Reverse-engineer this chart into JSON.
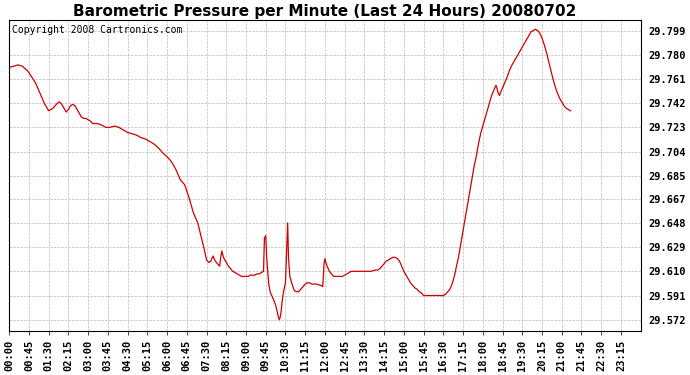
{
  "title": "Barometric Pressure per Minute (Last 24 Hours) 20080702",
  "copyright": "Copyright 2008 Cartronics.com",
  "line_color": "#cc0000",
  "bg_color": "#ffffff",
  "grid_color": "#b0b0b0",
  "yticks": [
    29.572,
    29.591,
    29.61,
    29.629,
    29.648,
    29.667,
    29.685,
    29.704,
    29.723,
    29.742,
    29.761,
    29.78,
    29.799
  ],
  "ylim": [
    29.5635,
    29.807
  ],
  "xtick_labels": [
    "00:00",
    "00:45",
    "01:30",
    "02:15",
    "03:00",
    "03:45",
    "04:30",
    "05:15",
    "06:00",
    "06:45",
    "07:30",
    "08:15",
    "09:00",
    "09:45",
    "10:30",
    "11:15",
    "12:00",
    "12:45",
    "13:30",
    "14:15",
    "15:00",
    "15:45",
    "16:30",
    "17:15",
    "18:00",
    "18:45",
    "19:30",
    "20:15",
    "21:00",
    "21:45",
    "22:30",
    "23:15"
  ],
  "pressure_data": [
    [
      0,
      29.77
    ],
    [
      10,
      29.771
    ],
    [
      20,
      29.772
    ],
    [
      30,
      29.771
    ],
    [
      40,
      29.768
    ],
    [
      45,
      29.766
    ],
    [
      60,
      29.758
    ],
    [
      70,
      29.75
    ],
    [
      80,
      29.742
    ],
    [
      90,
      29.736
    ],
    [
      100,
      29.738
    ],
    [
      110,
      29.742
    ],
    [
      115,
      29.743
    ],
    [
      120,
      29.741
    ],
    [
      125,
      29.738
    ],
    [
      130,
      29.735
    ],
    [
      135,
      29.737
    ],
    [
      140,
      29.74
    ],
    [
      145,
      29.741
    ],
    [
      150,
      29.74
    ],
    [
      155,
      29.737
    ],
    [
      160,
      29.734
    ],
    [
      165,
      29.731
    ],
    [
      170,
      29.73
    ],
    [
      175,
      29.73
    ],
    [
      180,
      29.729
    ],
    [
      185,
      29.728
    ],
    [
      190,
      29.726
    ],
    [
      200,
      29.726
    ],
    [
      210,
      29.725
    ],
    [
      215,
      29.724
    ],
    [
      220,
      29.723
    ],
    [
      225,
      29.723
    ],
    [
      230,
      29.723
    ],
    [
      240,
      29.724
    ],
    [
      250,
      29.723
    ],
    [
      255,
      29.722
    ],
    [
      260,
      29.721
    ],
    [
      265,
      29.72
    ],
    [
      270,
      29.719
    ],
    [
      280,
      29.718
    ],
    [
      290,
      29.717
    ],
    [
      300,
      29.715
    ],
    [
      310,
      29.714
    ],
    [
      315,
      29.713
    ],
    [
      320,
      29.712
    ],
    [
      330,
      29.71
    ],
    [
      340,
      29.707
    ],
    [
      345,
      29.705
    ],
    [
      350,
      29.703
    ],
    [
      360,
      29.7
    ],
    [
      370,
      29.696
    ],
    [
      375,
      29.693
    ],
    [
      380,
      29.69
    ],
    [
      385,
      29.686
    ],
    [
      390,
      29.682
    ],
    [
      400,
      29.678
    ],
    [
      405,
      29.673
    ],
    [
      410,
      29.668
    ],
    [
      415,
      29.662
    ],
    [
      420,
      29.656
    ],
    [
      430,
      29.648
    ],
    [
      435,
      29.641
    ],
    [
      440,
      29.634
    ],
    [
      445,
      29.627
    ],
    [
      450,
      29.619
    ],
    [
      455,
      29.617
    ],
    [
      460,
      29.618
    ],
    [
      462,
      29.62
    ],
    [
      465,
      29.622
    ],
    [
      467,
      29.62
    ],
    [
      470,
      29.618
    ],
    [
      475,
      29.616
    ],
    [
      480,
      29.614
    ],
    [
      482,
      29.62
    ],
    [
      485,
      29.626
    ],
    [
      487,
      29.623
    ],
    [
      490,
      29.62
    ],
    [
      495,
      29.617
    ],
    [
      500,
      29.614
    ],
    [
      505,
      29.612
    ],
    [
      510,
      29.61
    ],
    [
      515,
      29.609
    ],
    [
      520,
      29.608
    ],
    [
      525,
      29.607
    ],
    [
      530,
      29.606
    ],
    [
      535,
      29.606
    ],
    [
      540,
      29.606
    ],
    [
      545,
      29.606
    ],
    [
      550,
      29.607
    ],
    [
      555,
      29.607
    ],
    [
      560,
      29.607
    ],
    [
      565,
      29.608
    ],
    [
      570,
      29.608
    ],
    [
      575,
      29.609
    ],
    [
      580,
      29.61
    ],
    [
      582,
      29.636
    ],
    [
      585,
      29.638
    ],
    [
      587,
      29.622
    ],
    [
      590,
      29.608
    ],
    [
      592,
      29.6
    ],
    [
      595,
      29.594
    ],
    [
      600,
      29.59
    ],
    [
      605,
      29.586
    ],
    [
      608,
      29.583
    ],
    [
      610,
      29.58
    ],
    [
      612,
      29.577
    ],
    [
      614,
      29.574
    ],
    [
      616,
      29.572
    ],
    [
      618,
      29.574
    ],
    [
      620,
      29.578
    ],
    [
      622,
      29.585
    ],
    [
      625,
      29.593
    ],
    [
      630,
      29.601
    ],
    [
      635,
      29.648
    ],
    [
      637,
      29.62
    ],
    [
      640,
      29.606
    ],
    [
      645,
      29.6
    ],
    [
      648,
      29.597
    ],
    [
      650,
      29.595
    ],
    [
      655,
      29.594
    ],
    [
      660,
      29.594
    ],
    [
      665,
      29.596
    ],
    [
      670,
      29.598
    ],
    [
      675,
      29.6
    ],
    [
      680,
      29.601
    ],
    [
      685,
      29.601
    ],
    [
      690,
      29.6
    ],
    [
      700,
      29.6
    ],
    [
      710,
      29.599
    ],
    [
      715,
      29.598
    ],
    [
      718,
      29.616
    ],
    [
      720,
      29.62
    ],
    [
      722,
      29.617
    ],
    [
      725,
      29.614
    ],
    [
      730,
      29.61
    ],
    [
      735,
      29.608
    ],
    [
      740,
      29.606
    ],
    [
      745,
      29.606
    ],
    [
      750,
      29.606
    ],
    [
      755,
      29.606
    ],
    [
      760,
      29.606
    ],
    [
      765,
      29.607
    ],
    [
      770,
      29.608
    ],
    [
      775,
      29.609
    ],
    [
      780,
      29.61
    ],
    [
      785,
      29.61
    ],
    [
      790,
      29.61
    ],
    [
      795,
      29.61
    ],
    [
      800,
      29.61
    ],
    [
      805,
      29.61
    ],
    [
      810,
      29.61
    ],
    [
      815,
      29.61
    ],
    [
      820,
      29.61
    ],
    [
      825,
      29.61
    ],
    [
      835,
      29.611
    ],
    [
      840,
      29.611
    ],
    [
      845,
      29.612
    ],
    [
      850,
      29.614
    ],
    [
      855,
      29.616
    ],
    [
      860,
      29.618
    ],
    [
      870,
      29.62
    ],
    [
      875,
      29.621
    ],
    [
      880,
      29.621
    ],
    [
      885,
      29.62
    ],
    [
      890,
      29.618
    ],
    [
      895,
      29.614
    ],
    [
      900,
      29.61
    ],
    [
      905,
      29.607
    ],
    [
      910,
      29.604
    ],
    [
      915,
      29.601
    ],
    [
      920,
      29.599
    ],
    [
      925,
      29.597
    ],
    [
      930,
      29.596
    ],
    [
      935,
      29.594
    ],
    [
      940,
      29.593
    ],
    [
      945,
      29.591
    ],
    [
      950,
      29.591
    ],
    [
      955,
      29.591
    ],
    [
      960,
      29.591
    ],
    [
      965,
      29.591
    ],
    [
      970,
      29.591
    ],
    [
      975,
      29.591
    ],
    [
      980,
      29.591
    ],
    [
      985,
      29.591
    ],
    [
      990,
      29.591
    ],
    [
      995,
      29.592
    ],
    [
      1000,
      29.594
    ],
    [
      1005,
      29.596
    ],
    [
      1010,
      29.6
    ],
    [
      1015,
      29.606
    ],
    [
      1020,
      29.614
    ],
    [
      1025,
      29.622
    ],
    [
      1030,
      29.632
    ],
    [
      1035,
      29.642
    ],
    [
      1040,
      29.652
    ],
    [
      1045,
      29.662
    ],
    [
      1050,
      29.672
    ],
    [
      1055,
      29.682
    ],
    [
      1060,
      29.692
    ],
    [
      1065,
      29.7
    ],
    [
      1070,
      29.71
    ],
    [
      1075,
      29.718
    ],
    [
      1080,
      29.724
    ],
    [
      1085,
      29.73
    ],
    [
      1090,
      29.736
    ],
    [
      1095,
      29.742
    ],
    [
      1100,
      29.748
    ],
    [
      1105,
      29.752
    ],
    [
      1110,
      29.756
    ],
    [
      1112,
      29.754
    ],
    [
      1115,
      29.75
    ],
    [
      1118,
      29.748
    ],
    [
      1120,
      29.75
    ],
    [
      1125,
      29.754
    ],
    [
      1130,
      29.758
    ],
    [
      1135,
      29.762
    ],
    [
      1140,
      29.767
    ],
    [
      1145,
      29.771
    ],
    [
      1150,
      29.774
    ],
    [
      1155,
      29.777
    ],
    [
      1160,
      29.78
    ],
    [
      1165,
      29.783
    ],
    [
      1170,
      29.786
    ],
    [
      1175,
      29.789
    ],
    [
      1180,
      29.792
    ],
    [
      1185,
      29.795
    ],
    [
      1190,
      29.798
    ],
    [
      1195,
      29.799
    ],
    [
      1200,
      29.8
    ],
    [
      1205,
      29.799
    ],
    [
      1210,
      29.797
    ],
    [
      1215,
      29.793
    ],
    [
      1220,
      29.788
    ],
    [
      1225,
      29.782
    ],
    [
      1230,
      29.775
    ],
    [
      1235,
      29.768
    ],
    [
      1240,
      29.761
    ],
    [
      1245,
      29.755
    ],
    [
      1250,
      29.75
    ],
    [
      1255,
      29.746
    ],
    [
      1260,
      29.743
    ],
    [
      1265,
      29.74
    ],
    [
      1270,
      29.738
    ],
    [
      1275,
      29.737
    ],
    [
      1280,
      29.736
    ]
  ],
  "title_fontsize": 11,
  "copyright_fontsize": 7,
  "tick_fontsize": 7.5,
  "figsize": [
    6.9,
    3.75
  ],
  "dpi": 100
}
